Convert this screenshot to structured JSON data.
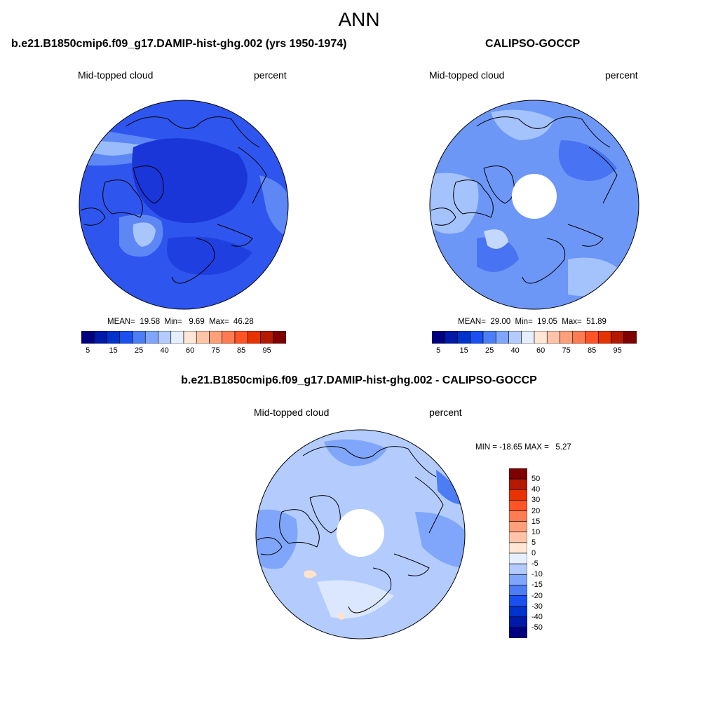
{
  "season_title": "ANN",
  "panels": [
    {
      "id": "model",
      "title": "b.e21.B1850cmip6.f09_g17.DAMIP-hist-ghg.002 (yrs 1950-1974)",
      "variable": "Mid-topped cloud",
      "units": "percent",
      "stats": "MEAN=  19.58  Min=   9.69  Max=  46.28"
    },
    {
      "id": "obs",
      "title": "CALIPSO-GOCCP",
      "variable": "Mid-topped cloud",
      "units": "percent",
      "stats": "MEAN=  29.00  Min=  19.05  Max=  51.89"
    },
    {
      "id": "diff",
      "title": "b.e21.B1850cmip6.f09_g17.DAMIP-hist-ghg.002 - CALIPSO-GOCCP",
      "variable": "Mid-topped cloud",
      "units": "percent",
      "stats": "MIN = -18.65 MAX =   5.27"
    }
  ],
  "colorbar_abs": {
    "colors": [
      "#00007f",
      "#0019a8",
      "#0033cc",
      "#1a4ff0",
      "#4d7df5",
      "#7fa6fa",
      "#b3ccfd",
      "#e6efff",
      "#ffe6d5",
      "#ffc4a8",
      "#ffa07a",
      "#ff7b52",
      "#ff5426",
      "#e63300",
      "#b31a00",
      "#7f0000"
    ],
    "tick_labels": [
      "5",
      "15",
      "25",
      "40",
      "60",
      "75",
      "85",
      "95"
    ]
  },
  "colorbar_diff": {
    "colors": [
      "#7f0000",
      "#b31a00",
      "#e63300",
      "#ff5426",
      "#ff7b52",
      "#ffa07a",
      "#ffc4a8",
      "#ffe6d5",
      "#e6efff",
      "#b3ccfd",
      "#7fa6fa",
      "#4d7df5",
      "#1a4ff0",
      "#0033cc",
      "#0019a8",
      "#00007f"
    ],
    "tick_labels": [
      "50",
      "40",
      "30",
      "20",
      "15",
      "10",
      "5",
      "0",
      "-5",
      "-10",
      "-15",
      "-20",
      "-30",
      "-40",
      "-50"
    ]
  },
  "map_palette": {
    "deep": "#1d3ee6",
    "mid": "#3c63f0",
    "light": "#7297f7",
    "pale": "#a8c4fb",
    "very_pale": "#d6e3fd",
    "warm": "#ffe2cc"
  }
}
